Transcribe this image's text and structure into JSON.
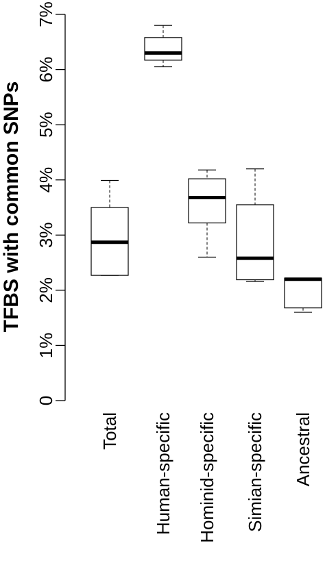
{
  "chart_data": {
    "type": "boxplot",
    "ylabel": "TFBS with common SNPs",
    "ylim": [
      0,
      7
    ],
    "y_ticks": [
      "0",
      "1%",
      "2%",
      "3%",
      "4%",
      "5%",
      "6%",
      "7%"
    ],
    "categories": [
      "Total",
      "Human-specific",
      "Hominid-specific",
      "Simian-specific",
      "Ancestral"
    ],
    "boxes": [
      {
        "category": "Total",
        "min": 2.27,
        "q1": 2.27,
        "median": 2.87,
        "q3": 3.5,
        "max": 3.99
      },
      {
        "category": "Human-specific",
        "min": 6.05,
        "q1": 6.17,
        "median": 6.3,
        "q3": 6.58,
        "max": 6.8
      },
      {
        "category": "Hominid-specific",
        "min": 2.6,
        "q1": 3.22,
        "median": 3.68,
        "q3": 4.02,
        "max": 4.18
      },
      {
        "category": "Simian-specific",
        "min": 2.16,
        "q1": 2.19,
        "median": 2.58,
        "q3": 3.55,
        "max": 4.2
      },
      {
        "category": "Ancestral",
        "min": 1.6,
        "q1": 1.68,
        "median": 2.2,
        "q3": 2.22,
        "max": 2.22
      }
    ],
    "orientation": "rotated-90",
    "grid": false,
    "legend": "none"
  }
}
